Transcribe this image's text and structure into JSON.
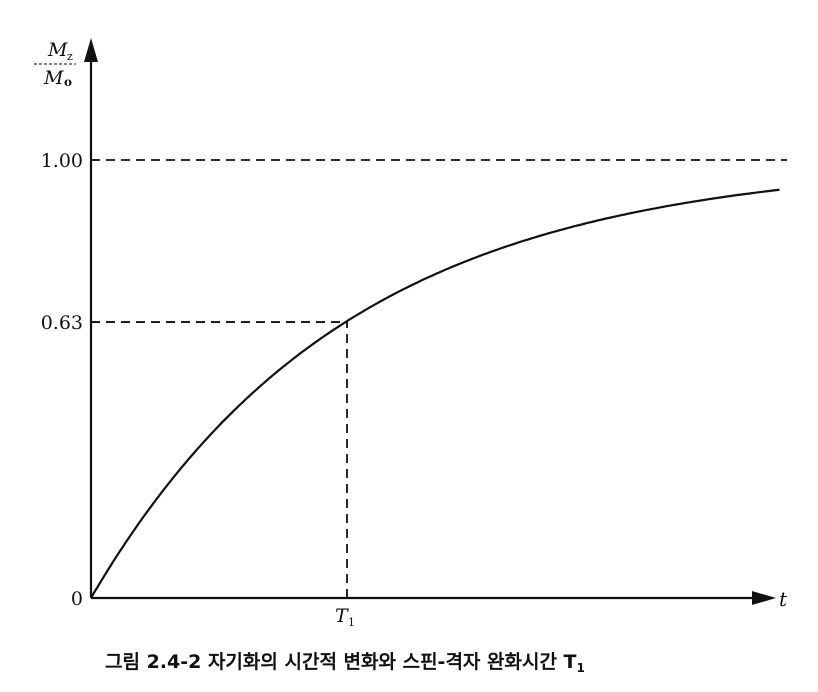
{
  "chart_data": {
    "type": "line",
    "title": "",
    "caption": "그림 2.4-2  자기화의 시간적 변화와 스핀-격자 완화시간 T",
    "caption_subscript": "1",
    "xlabel": "t",
    "ylabel_numerator": "M",
    "ylabel_numerator_sub": "z",
    "ylabel_denominator": "M",
    "ylabel_denominator_sub": "o",
    "function": "Mz/M0 = 1 - exp(-t/T1)",
    "xlim_in_T1": [
      0,
      2.7
    ],
    "ylim": [
      0,
      1.05
    ],
    "y_ticks": [
      {
        "value": 0,
        "label": "0"
      },
      {
        "value": 0.63,
        "label": "0.63"
      },
      {
        "value": 1.0,
        "label": "1.00"
      }
    ],
    "x_ticks": [
      {
        "value_in_T1": 1,
        "label": "T",
        "sub": "1"
      }
    ],
    "reference_lines": [
      {
        "type": "horizontal",
        "y": 1.0,
        "style": "dashed"
      },
      {
        "type": "horizontal",
        "y": 0.63,
        "to_x_in_T1": 1,
        "style": "dashed"
      },
      {
        "type": "vertical",
        "x_in_T1": 1,
        "to_y": 0.63,
        "style": "dashed"
      }
    ],
    "series": [
      {
        "values_description_free": true,
        "x_in_T1_max": 2.69
      }
    ],
    "grid": false,
    "colors": {
      "ink": "#111111",
      "background": "#ffffff"
    }
  }
}
